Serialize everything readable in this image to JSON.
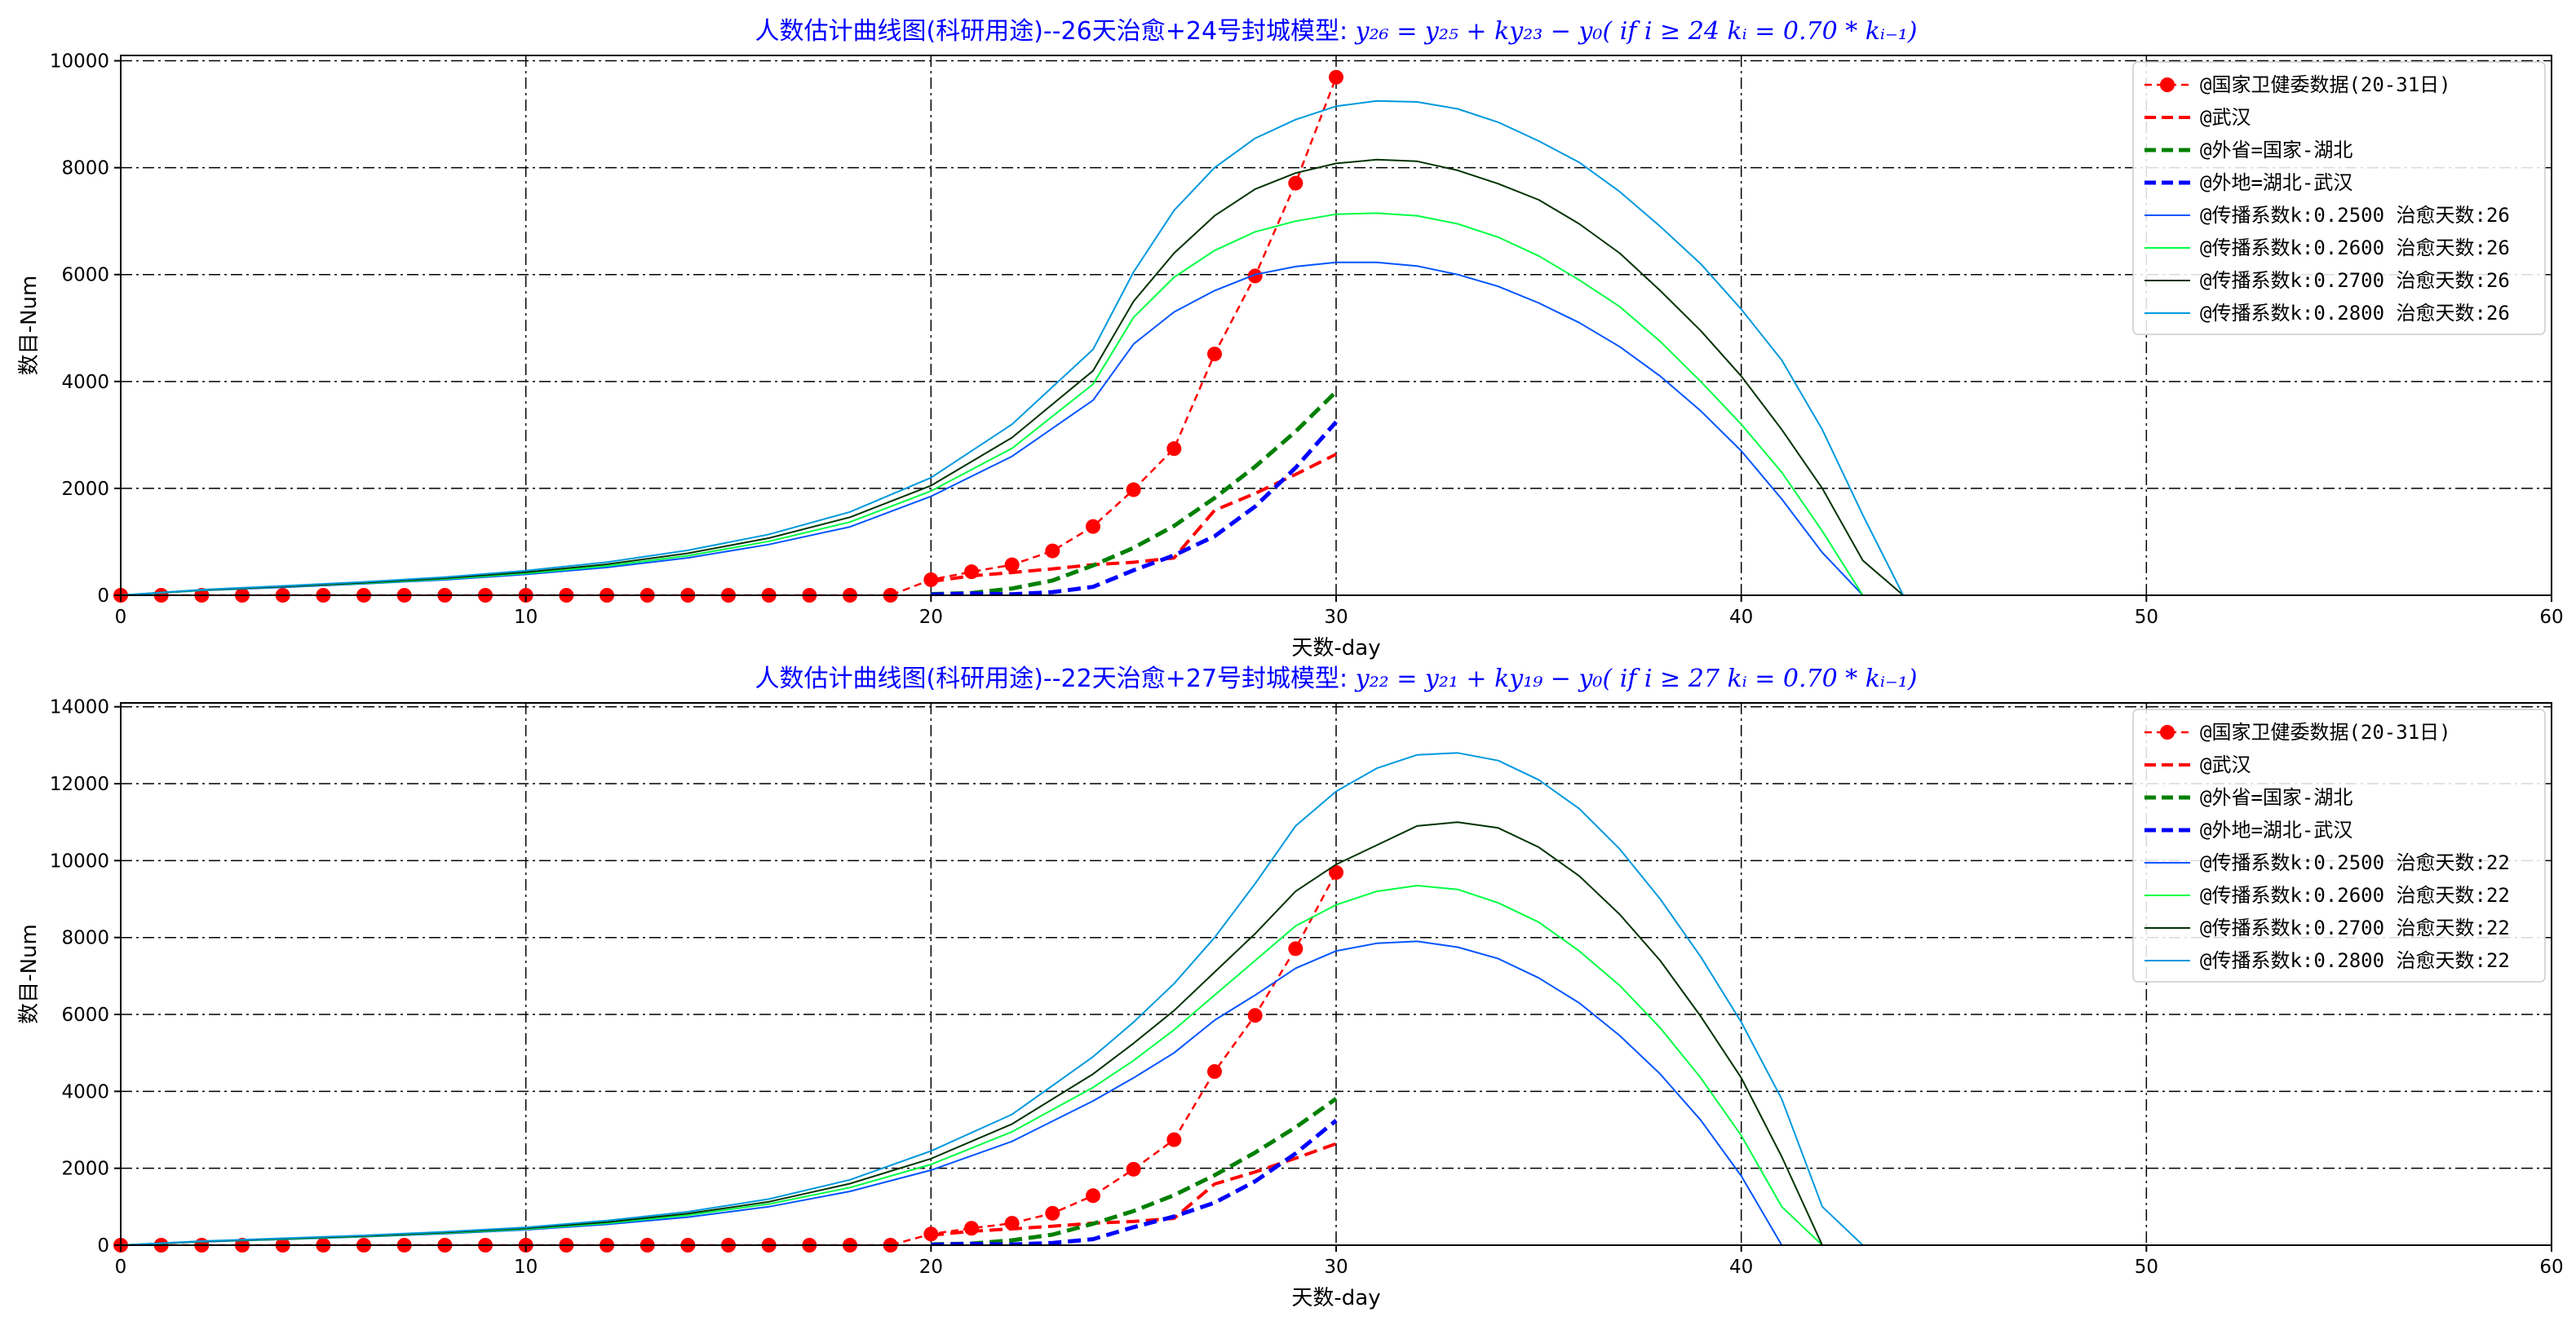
{
  "chart_data": [
    {
      "type": "line",
      "title": "人数估计曲线图(科研用途)--26天治愈+24号封城模型: y26=y25+ky23-y0( if i≥24 ki=0.70*ki-1)",
      "title_plain": "人数估计曲线图(科研用途)--26天治愈+24号封城模型: ",
      "title_formula": "y₂₆ = y₂₅ + ky₂₃ − y₀( if i ≥ 24 kᵢ = 0.70 * kᵢ₋₁)",
      "xlabel": "天数-day",
      "ylabel": "数目-Num",
      "xlim": [
        0,
        60
      ],
      "ylim": [
        0,
        10100
      ],
      "xticks": [
        0,
        10,
        20,
        30,
        40,
        50,
        60
      ],
      "yticks": [
        0,
        2000,
        4000,
        6000,
        8000,
        10000
      ],
      "grid": true,
      "legend_position": "top-right",
      "series": [
        {
          "name": "@国家卫健委数据(20-31日)",
          "color": "#ff0000",
          "style": "dashed",
          "marker": "circle",
          "width": 2.5,
          "x": [
            0,
            1,
            2,
            3,
            4,
            5,
            6,
            7,
            8,
            9,
            10,
            11,
            12,
            13,
            14,
            15,
            16,
            17,
            18,
            19,
            20,
            21,
            22,
            23,
            24,
            25,
            26,
            27,
            28,
            29,
            30
          ],
          "y": [
            0,
            0,
            0,
            0,
            0,
            0,
            0,
            0,
            0,
            0,
            0,
            0,
            0,
            0,
            0,
            0,
            0,
            0,
            0,
            0,
            291,
            440,
            571,
            830,
            1287,
            1975,
            2744,
            4515,
            5974,
            7711,
            9692
          ]
        },
        {
          "name": "@武汉",
          "color": "#ff0000",
          "style": "bold-dashed",
          "width": 4,
          "x": [
            20,
            21,
            22,
            23,
            24,
            25,
            26,
            27,
            28,
            29,
            30
          ],
          "y": [
            258,
            363,
            425,
            495,
            572,
            618,
            698,
            1590,
            1905,
            2261,
            2639
          ]
        },
        {
          "name": "@外省=国家-湖北",
          "color": "#008000",
          "style": "bold-dashed",
          "width": 5,
          "x": [
            20,
            21,
            22,
            23,
            24,
            25,
            26,
            27,
            28,
            29,
            30
          ],
          "y": [
            21,
            43,
            127,
            276,
            558,
            888,
            1299,
            1820,
            2408,
            3064,
            3810
          ]
        },
        {
          "name": "@外地=湖北-武汉",
          "color": "#0000ff",
          "style": "bold-dashed",
          "width": 5,
          "x": [
            20,
            21,
            22,
            23,
            24,
            25,
            26,
            27,
            28,
            29,
            30
          ],
          "y": [
            12,
            34,
            19,
            59,
            157,
            469,
            747,
            1105,
            1661,
            2386,
            3243
          ]
        },
        {
          "name": "@传播系数k:0.2500 治愈天数:26",
          "color": "#0055ff",
          "style": "solid",
          "width": 2,
          "x": [
            0,
            2,
            4,
            6,
            8,
            10,
            12,
            14,
            16,
            18,
            20,
            22,
            24,
            25,
            26,
            27,
            28,
            29,
            30,
            31,
            32,
            33,
            34,
            35,
            36,
            37,
            38,
            39,
            40,
            41,
            42,
            43,
            44,
            59
          ],
          "y": [
            0,
            90,
            150,
            215,
            290,
            390,
            520,
            700,
            950,
            1280,
            1850,
            2600,
            3650,
            4700,
            5300,
            5700,
            6000,
            6150,
            6230,
            6230,
            6160,
            6000,
            5780,
            5470,
            5100,
            4650,
            4100,
            3450,
            2700,
            1800,
            800,
            0,
            0,
            0
          ]
        },
        {
          "name": "@传播系数k:0.2600 治愈天数:26",
          "color": "#00ff44",
          "style": "solid",
          "width": 2,
          "x": [
            0,
            2,
            4,
            6,
            8,
            10,
            12,
            14,
            16,
            18,
            20,
            22,
            24,
            25,
            26,
            27,
            28,
            29,
            30,
            31,
            32,
            33,
            34,
            35,
            36,
            37,
            38,
            39,
            40,
            41,
            42,
            43,
            44,
            59
          ],
          "y": [
            0,
            95,
            160,
            225,
            305,
            410,
            550,
            740,
            1010,
            1370,
            1950,
            2750,
            3950,
            5200,
            5950,
            6450,
            6800,
            7000,
            7130,
            7150,
            7100,
            6950,
            6700,
            6350,
            5900,
            5400,
            4750,
            4000,
            3200,
            2300,
            1200,
            0,
            0,
            0
          ]
        },
        {
          "name": "@传播系数k:0.2700 治愈天数:26",
          "color": "#003300",
          "style": "solid",
          "width": 2,
          "x": [
            0,
            2,
            4,
            6,
            8,
            10,
            12,
            14,
            16,
            18,
            20,
            22,
            24,
            25,
            26,
            27,
            28,
            29,
            30,
            31,
            32,
            33,
            34,
            35,
            36,
            37,
            38,
            39,
            40,
            41,
            42,
            43,
            44,
            59
          ],
          "y": [
            0,
            100,
            165,
            235,
            320,
            430,
            580,
            785,
            1070,
            1460,
            2050,
            2950,
            4200,
            5500,
            6400,
            7100,
            7600,
            7900,
            8080,
            8150,
            8120,
            7950,
            7700,
            7400,
            6950,
            6400,
            5700,
            4950,
            4100,
            3100,
            2000,
            650,
            0,
            0
          ]
        },
        {
          "name": "@传播系数k:0.2800 治愈天数:26",
          "color": "#0099dd",
          "style": "solid",
          "width": 2,
          "x": [
            0,
            2,
            4,
            6,
            8,
            10,
            12,
            14,
            16,
            18,
            20,
            22,
            24,
            25,
            26,
            27,
            28,
            29,
            30,
            31,
            32,
            33,
            34,
            35,
            36,
            37,
            38,
            39,
            40,
            41,
            42,
            43,
            44,
            59
          ],
          "y": [
            0,
            105,
            175,
            250,
            340,
            460,
            620,
            840,
            1140,
            1560,
            2200,
            3200,
            4600,
            6050,
            7200,
            8000,
            8550,
            8900,
            9150,
            9250,
            9230,
            9100,
            8850,
            8500,
            8100,
            7550,
            6900,
            6200,
            5350,
            4400,
            3100,
            1500,
            0,
            0
          ]
        }
      ]
    },
    {
      "type": "line",
      "title": "人数估计曲线图(科研用途)--22天治愈+27号封城模型: y22=y21+ky19-y0( if i≥27 ki=0.70*ki-1)",
      "title_plain": "人数估计曲线图(科研用途)--22天治愈+27号封城模型: ",
      "title_formula": "y₂₂ = y₂₁ + ky₁₉ − y₀( if i ≥ 27 kᵢ = 0.70 * kᵢ₋₁)",
      "xlabel": "天数-day",
      "ylabel": "数目-Num",
      "xlim": [
        0,
        60
      ],
      "ylim": [
        0,
        14100
      ],
      "xticks": [
        0,
        10,
        20,
        30,
        40,
        50,
        60
      ],
      "yticks": [
        0,
        2000,
        4000,
        6000,
        8000,
        10000,
        12000,
        14000
      ],
      "grid": true,
      "legend_position": "top-right",
      "series": [
        {
          "name": "@国家卫健委数据(20-31日)",
          "color": "#ff0000",
          "style": "dashed",
          "marker": "circle",
          "width": 2.5,
          "x": [
            0,
            1,
            2,
            3,
            4,
            5,
            6,
            7,
            8,
            9,
            10,
            11,
            12,
            13,
            14,
            15,
            16,
            17,
            18,
            19,
            20,
            21,
            22,
            23,
            24,
            25,
            26,
            27,
            28,
            29,
            30
          ],
          "y": [
            0,
            0,
            0,
            0,
            0,
            0,
            0,
            0,
            0,
            0,
            0,
            0,
            0,
            0,
            0,
            0,
            0,
            0,
            0,
            0,
            291,
            440,
            571,
            830,
            1287,
            1975,
            2744,
            4515,
            5974,
            7711,
            9692
          ]
        },
        {
          "name": "@武汉",
          "color": "#ff0000",
          "style": "bold-dashed",
          "width": 4,
          "x": [
            20,
            21,
            22,
            23,
            24,
            25,
            26,
            27,
            28,
            29,
            30
          ],
          "y": [
            258,
            363,
            425,
            495,
            572,
            618,
            698,
            1590,
            1905,
            2261,
            2639
          ]
        },
        {
          "name": "@外省=国家-湖北",
          "color": "#008000",
          "style": "bold-dashed",
          "width": 5,
          "x": [
            20,
            21,
            22,
            23,
            24,
            25,
            26,
            27,
            28,
            29,
            30
          ],
          "y": [
            21,
            43,
            127,
            276,
            558,
            888,
            1299,
            1820,
            2408,
            3064,
            3810
          ]
        },
        {
          "name": "@外地=湖北-武汉",
          "color": "#0000ff",
          "style": "bold-dashed",
          "width": 5,
          "x": [
            20,
            21,
            22,
            23,
            24,
            25,
            26,
            27,
            28,
            29,
            30
          ],
          "y": [
            12,
            34,
            19,
            59,
            157,
            469,
            747,
            1105,
            1661,
            2386,
            3243
          ]
        },
        {
          "name": "@传播系数k:0.2500 治愈天数:22",
          "color": "#0055ff",
          "style": "solid",
          "width": 2,
          "x": [
            0,
            2,
            4,
            6,
            8,
            10,
            12,
            14,
            16,
            18,
            20,
            22,
            24,
            25,
            26,
            27,
            28,
            29,
            30,
            31,
            32,
            33,
            34,
            35,
            36,
            37,
            38,
            39,
            40,
            41,
            42,
            59
          ],
          "y": [
            0,
            90,
            150,
            220,
            300,
            400,
            540,
            730,
            1000,
            1400,
            1950,
            2700,
            3750,
            4350,
            5000,
            5850,
            6500,
            7200,
            7650,
            7850,
            7900,
            7750,
            7450,
            6950,
            6300,
            5450,
            4450,
            3250,
            1800,
            0,
            0,
            0
          ]
        },
        {
          "name": "@传播系数k:0.2600 治愈天数:22",
          "color": "#00ff44",
          "style": "solid",
          "width": 2,
          "x": [
            0,
            2,
            4,
            6,
            8,
            10,
            12,
            14,
            16,
            18,
            20,
            22,
            24,
            25,
            26,
            27,
            28,
            29,
            30,
            31,
            32,
            33,
            34,
            35,
            36,
            37,
            38,
            39,
            40,
            41,
            42,
            59
          ],
          "y": [
            0,
            95,
            160,
            230,
            315,
            420,
            570,
            780,
            1070,
            1500,
            2100,
            2950,
            4100,
            4800,
            5600,
            6500,
            7400,
            8300,
            8850,
            9200,
            9350,
            9250,
            8900,
            8400,
            7650,
            6750,
            5650,
            4350,
            2850,
            1000,
            0,
            0
          ]
        },
        {
          "name": "@传播系数k:0.2700 治愈天数:22",
          "color": "#003300",
          "style": "solid",
          "width": 2,
          "x": [
            0,
            2,
            4,
            6,
            8,
            10,
            12,
            14,
            16,
            18,
            20,
            22,
            24,
            25,
            26,
            27,
            28,
            29,
            30,
            31,
            32,
            33,
            34,
            35,
            36,
            37,
            38,
            39,
            40,
            41,
            42,
            59
          ],
          "y": [
            0,
            100,
            170,
            240,
            330,
            440,
            600,
            820,
            1130,
            1600,
            2250,
            3150,
            4450,
            5250,
            6100,
            7100,
            8100,
            9200,
            9900,
            10400,
            10900,
            11000,
            10850,
            10350,
            9600,
            8600,
            7400,
            5950,
            4350,
            2300,
            0,
            0
          ]
        },
        {
          "name": "@传播系数k:0.2800 治愈天数:22",
          "color": "#0099dd",
          "style": "solid",
          "width": 2,
          "x": [
            0,
            2,
            4,
            6,
            8,
            10,
            12,
            14,
            16,
            18,
            20,
            22,
            24,
            25,
            26,
            27,
            28,
            29,
            30,
            31,
            32,
            33,
            34,
            35,
            36,
            37,
            38,
            39,
            40,
            41,
            42,
            43,
            59
          ],
          "y": [
            0,
            105,
            180,
            255,
            350,
            465,
            640,
            870,
            1200,
            1700,
            2450,
            3400,
            4900,
            5800,
            6800,
            8000,
            9400,
            10900,
            11800,
            12400,
            12750,
            12800,
            12600,
            12100,
            11350,
            10300,
            9000,
            7500,
            5800,
            3800,
            1000,
            0,
            0
          ]
        }
      ]
    }
  ]
}
